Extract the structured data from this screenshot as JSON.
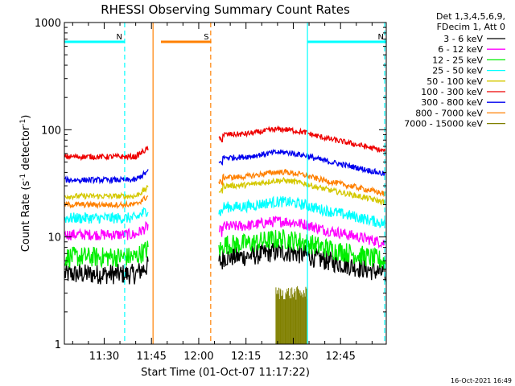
{
  "chart_data": {
    "type": "line",
    "title": "RHESSI Observing Summary Count Rates",
    "xlabel": "Start Time (01-Oct-07 11:17:22)",
    "ylabel_main": "Count Rate (s",
    "ylabel_sup1": "-1",
    "ylabel_mid": " detector",
    "ylabel_sup2": "-1",
    "ylabel_end": ")",
    "y_scale": "log",
    "ylim": [
      1,
      1000
    ],
    "xlim_minutes": [
      17.37,
      119.5
    ],
    "x_ticks": [
      {
        "label": "11:30",
        "minute": 30
      },
      {
        "label": "11:45",
        "minute": 45
      },
      {
        "label": "12:00",
        "minute": 60
      },
      {
        "label": "12:15",
        "minute": 75
      },
      {
        "label": "12:30",
        "minute": 90
      },
      {
        "label": "12:45",
        "minute": 105
      }
    ],
    "y_ticks": [
      {
        "label": "1000",
        "value": 1000
      },
      {
        "label": "100",
        "value": 100
      },
      {
        "label": "10",
        "value": 10
      },
      {
        "label": "1",
        "value": 1
      }
    ],
    "legend_header": [
      "Det 1,3,4,5,6,9,",
      "FDecim 1, Att 0"
    ],
    "legend_position": "right",
    "series": [
      {
        "name": "3 - 6 keV",
        "color": "#000000",
        "pre": 4.5,
        "post": 6.5
      },
      {
        "name": "6 - 12 keV",
        "color": "#ff00ff",
        "pre": 10.5,
        "post": 12.5
      },
      {
        "name": "12 - 25 keV",
        "color": "#00ee00",
        "pre": 6.5,
        "post": 8.5
      },
      {
        "name": "25 - 50 keV",
        "color": "#00ffff",
        "pre": 15,
        "post": 19
      },
      {
        "name": "50 - 100 keV",
        "color": "#d4c800",
        "pre": 24,
        "post": 30
      },
      {
        "name": "100 - 300 keV",
        "color": "#ee0000",
        "pre": 56,
        "post": 90
      },
      {
        "name": "300 - 800 keV",
        "color": "#0000ee",
        "pre": 34,
        "post": 55
      },
      {
        "name": "800 - 7000 keV",
        "color": "#ff8000",
        "pre": 20,
        "post": 36
      },
      {
        "name": "7000 - 15000 keV",
        "color": "#808000",
        "pre": null,
        "post": null
      }
    ],
    "data_gap_minutes": [
      45.5,
      66
    ],
    "annotations": [
      {
        "text": "N",
        "color": "#00ffff",
        "start_minute": 17.37,
        "end_minute": 36.5
      },
      {
        "text": "N",
        "color": "#00ffff",
        "start_minute": 94.5,
        "end_minute": 119.5
      },
      {
        "text": "S",
        "color": "#ff8000",
        "start_minute": 48,
        "end_minute": 64
      }
    ],
    "saa_minutes": [
      45.5,
      63.8
    ],
    "night_boundaries_minutes": [
      36.5,
      94.5,
      119.0
    ],
    "olive_burst_minutes": [
      84.5,
      94.5
    ]
  },
  "footer": {
    "timestamp": "16-Oct-2021 16:49"
  },
  "colors": {
    "background": "#ffffff",
    "axes": "#000000"
  }
}
